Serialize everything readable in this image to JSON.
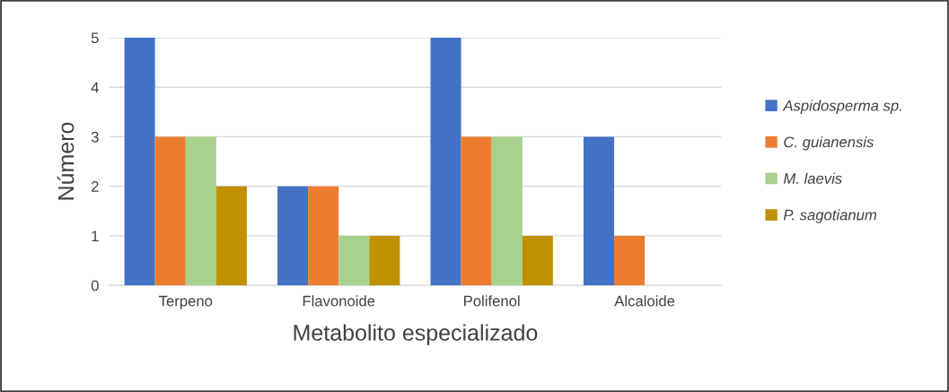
{
  "chart_data": {
    "type": "bar",
    "xlabel": "Metabolito especializado",
    "ylabel": "Número",
    "categories": [
      "Terpeno",
      "Flavonoide",
      "Polifenol",
      "Alcaloide"
    ],
    "series": [
      {
        "name": "Aspidosperma sp.",
        "color": "#4472c4",
        "values": [
          5,
          2,
          5,
          3
        ]
      },
      {
        "name": "C. guianensis",
        "color": "#ed7d31",
        "values": [
          3,
          2,
          3,
          1
        ]
      },
      {
        "name": "M. laevis",
        "color": "#a9d18e",
        "values": [
          3,
          1,
          3,
          0
        ]
      },
      {
        "name": "P. sagotianum",
        "color": "#bf9000",
        "values": [
          2,
          1,
          1,
          0
        ]
      }
    ],
    "ylim": [
      0,
      5
    ],
    "yticks": [
      0,
      1,
      2,
      3,
      4,
      5
    ],
    "grid": "y",
    "legend": "right"
  }
}
